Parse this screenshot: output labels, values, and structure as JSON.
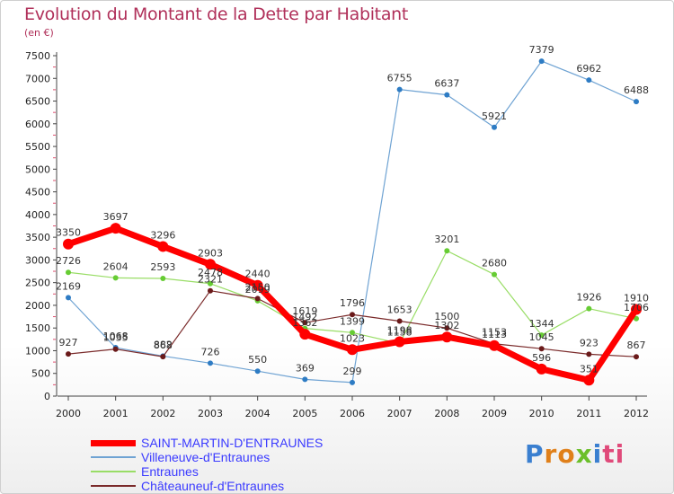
{
  "header": {
    "title": "Evolution du Montant de la Dette par Habitant",
    "unit": "(en €)"
  },
  "logo": {
    "text": "Proxiti",
    "letters": [
      "P",
      "r",
      "o",
      "x",
      "i",
      "ti"
    ]
  },
  "chart_data": {
    "type": "line",
    "title": "Evolution du Montant de la Dette par Habitant",
    "subtitle": "(en €)",
    "xlabel": "",
    "ylabel": "",
    "x": [
      "2000",
      "2001",
      "2002",
      "2003",
      "2004",
      "2005",
      "2006",
      "2007",
      "2008",
      "2009",
      "2010",
      "2011",
      "2012"
    ],
    "ylim": [
      0,
      7500
    ],
    "yticks": [
      0,
      500,
      1000,
      1500,
      2000,
      2500,
      3000,
      3500,
      4000,
      4500,
      5000,
      5500,
      6000,
      6500,
      7000,
      7500
    ],
    "grid": false,
    "legend_position": "bottom-left",
    "series": [
      {
        "name": "SAINT-MARTIN-D'ENTRAUNES",
        "color": "#ff0000",
        "width": 7,
        "marker_r": 6,
        "values": [
          3350,
          3697,
          3296,
          2903,
          2440,
          1362,
          1023,
          1198,
          1302,
          1113,
          596,
          351,
          1910
        ]
      },
      {
        "name": "Villeneuve-d'Entraunes",
        "color": "#6fa3d3",
        "width": 1.2,
        "marker_r": 3,
        "marker_color": "#2e7cc4",
        "values": [
          2169,
          1068,
          882,
          726,
          550,
          369,
          299,
          6755,
          6637,
          5921,
          7379,
          6962,
          6488
        ]
      },
      {
        "name": "Entraunes",
        "color": "#99dd66",
        "width": 1.2,
        "marker_r": 3,
        "marker_color": "#66cc33",
        "values": [
          2726,
          2604,
          2593,
          2478,
          2099,
          1492,
          1399,
          1158,
          3201,
          2680,
          1344,
          1926,
          1706
        ]
      },
      {
        "name": "Châteauneuf-d'Entraunes",
        "color": "#7a2a2a",
        "width": 1.2,
        "marker_r": 3,
        "marker_color": "#6a1a1a",
        "values": [
          927,
          1035,
          868,
          2321,
          2150,
          1619,
          1796,
          1653,
          1500,
          1153,
          1045,
          923,
          867
        ]
      }
    ]
  }
}
